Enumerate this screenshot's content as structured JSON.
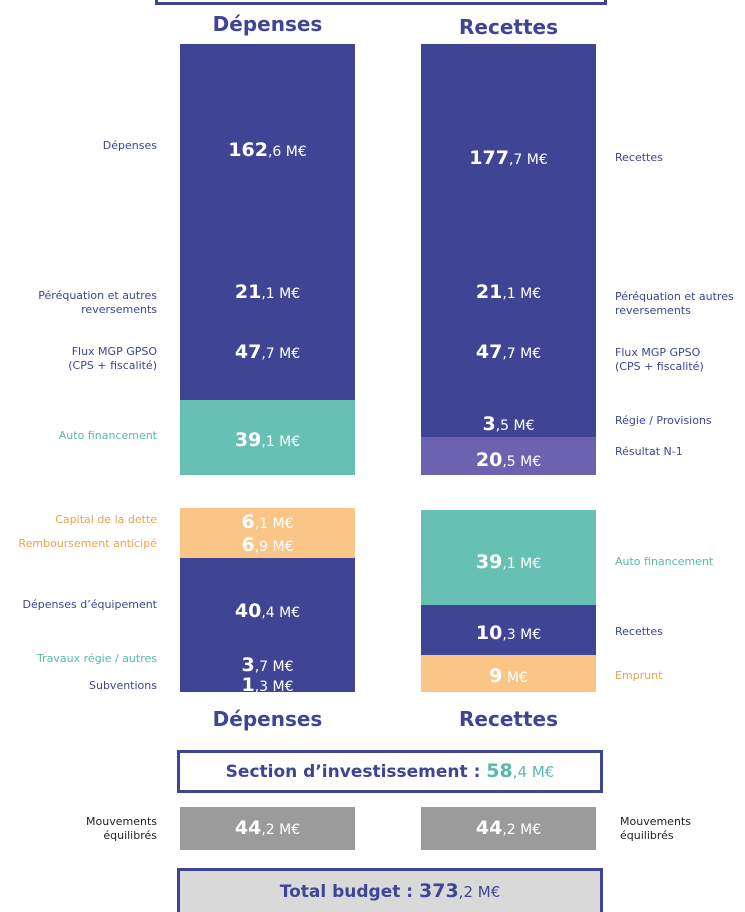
{
  "top_headers": [
    "Dépenses",
    "Recettes"
  ],
  "fonctionnement": {
    "depenses": [
      {
        "label": [
          "Dépenses"
        ],
        "bold": "162",
        "rest": ",6 M€"
      },
      {
        "label": [
          "Péréquation et autres",
          "reversements"
        ],
        "bold": "21",
        "rest": ",1 M€"
      },
      {
        "label": [
          "Flux MGP GPSO",
          "(CPS + fiscalité)"
        ],
        "bold": "47",
        "rest": ",7 M€"
      },
      {
        "label": [
          "Auto financement"
        ],
        "bold": "39",
        "rest": ",1 M€"
      }
    ],
    "recettes": [
      {
        "label": [
          "Recettes"
        ],
        "bold": "177",
        "rest": ",7 M€"
      },
      {
        "label": [
          "Péréquation et autres",
          "reversements"
        ],
        "bold": "21",
        "rest": ",1 M€"
      },
      {
        "label": [
          "Flux MGP GPSO",
          "(CPS + fiscalité)"
        ],
        "bold": "47",
        "rest": ",7 M€"
      },
      {
        "label": [
          "Régie / Provisions"
        ],
        "bold": "3",
        "rest": ",5 M€"
      },
      {
        "label": [
          "Résultat N-1"
        ],
        "bold": "20",
        "rest": ",5 M€"
      }
    ]
  },
  "investissement": {
    "depenses": [
      {
        "label": [
          "Capital de la dette"
        ],
        "bold": "6",
        "rest": ",1 M€"
      },
      {
        "label": [
          "Remboursement anticipé"
        ],
        "bold": "6",
        "rest": ",9 M€"
      },
      {
        "label": [
          "Dépenses d’équipement"
        ],
        "bold": "40",
        "rest": ",4 M€"
      },
      {
        "label": [
          "Travaux régie / autres"
        ],
        "bold": "3",
        "rest": ",7 M€"
      },
      {
        "label": [
          "Subventions"
        ],
        "bold": "1",
        "rest": ",3 M€"
      }
    ],
    "recettes": [
      {
        "label": [
          "Auto financement"
        ],
        "bold": "39",
        "rest": ",1 M€"
      },
      {
        "label": [
          "Recettes"
        ],
        "bold": "10",
        "rest": ",3 M€"
      },
      {
        "label": [
          "Emprunt"
        ],
        "bold": "9",
        "rest": " M€"
      }
    ]
  },
  "bottom_headers": [
    "Dépenses",
    "Recettes"
  ],
  "section_investissement": {
    "label": "Section d’investissement : ",
    "bold": "58",
    "rest": ",4 M€"
  },
  "mouvements": {
    "left": {
      "label": [
        "Mouvements",
        "équilibrés"
      ],
      "bold": "44",
      "rest": ",2 M€"
    },
    "right": {
      "label": [
        "Mouvements",
        "équilibrés"
      ],
      "bold": "44",
      "rest": ",2 M€"
    }
  },
  "total": {
    "label": "Total budget : ",
    "bold": "373",
    "rest": ",2 M€"
  }
}
